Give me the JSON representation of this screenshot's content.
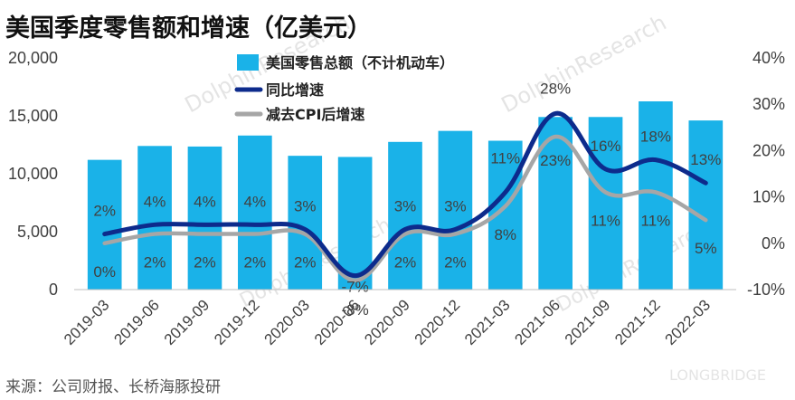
{
  "chart_data": {
    "type": "bar",
    "title": "美国季度零售额和增速（亿美元）",
    "categories": [
      "2019-03",
      "2019-06",
      "2019-09",
      "2019-12",
      "2020-03",
      "2020-06",
      "2020-09",
      "2020-12",
      "2021-03",
      "2021-06",
      "2021-09",
      "2021-12",
      "2022-03"
    ],
    "series": [
      {
        "name": "美国零售总额（不计机动车）",
        "type": "bar",
        "axis": "left",
        "color": "#1ab2e8",
        "values": [
          11200,
          12400,
          12350,
          13300,
          11550,
          11450,
          12750,
          13700,
          12850,
          14900,
          14900,
          16250,
          14600
        ]
      },
      {
        "name": "同比增速",
        "type": "line",
        "axis": "right",
        "color": "#0d2b8c",
        "values": [
          2,
          4,
          4,
          4,
          3,
          -7,
          3,
          3,
          11,
          28,
          16,
          18,
          13
        ],
        "labels": [
          "2%",
          "4%",
          "4%",
          "4%",
          "3%",
          "-7%",
          "3%",
          "3%",
          "11%",
          "28%",
          "16%",
          "18%",
          "13%"
        ]
      },
      {
        "name": "减去CPI后增速",
        "type": "line",
        "axis": "right",
        "color": "#a6a6a6",
        "values": [
          0,
          2,
          2,
          2,
          2,
          -8,
          2,
          2,
          8,
          23,
          11,
          11,
          5
        ],
        "labels": [
          "0%",
          "2%",
          "2%",
          "2%",
          "2%",
          "-8%",
          "2%",
          "2%",
          "8%",
          "23%",
          "11%",
          "11%",
          "5%"
        ]
      }
    ],
    "y_left": {
      "min": 0,
      "max": 20000,
      "ticks": [
        0,
        5000,
        10000,
        15000,
        20000
      ],
      "tick_labels": [
        "0",
        "5,000",
        "10,000",
        "15,000",
        "20,000"
      ]
    },
    "y_right": {
      "min": -10,
      "max": 40,
      "ticks": [
        -10,
        0,
        10,
        20,
        30,
        40
      ],
      "tick_labels": [
        "-10%",
        "0%",
        "10%",
        "20%",
        "30%",
        "40%"
      ]
    },
    "legend_position": "top-center",
    "grid": false,
    "source": "来源：公司财报、长桥海豚投研",
    "watermarks": [
      "DolphinResearch",
      "LONGBRIDGE"
    ]
  }
}
